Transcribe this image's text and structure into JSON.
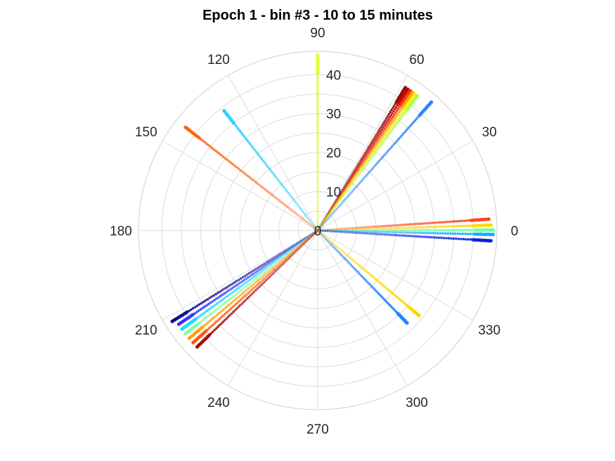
{
  "chart_data": {
    "type": "scatter",
    "subtype": "polar",
    "title": "Epoch 1 - bin #3 - 10 to 15 minutes",
    "angle_unit": "degrees",
    "angle_ticks": [
      0,
      30,
      60,
      90,
      120,
      150,
      180,
      210,
      240,
      270,
      300,
      330
    ],
    "radial_ticks": [
      0,
      10,
      20,
      30,
      40
    ],
    "rlim": [
      0,
      46
    ],
    "grid": true,
    "colormap": "jet",
    "series": [
      {
        "theta": 90,
        "r_max": 45,
        "color": "#d8ff2a"
      },
      {
        "theta": 128,
        "r_max": 39,
        "color": "#22d0ff"
      },
      {
        "theta": 142,
        "r_max": 43,
        "color": "#ff5a0a"
      },
      {
        "theta": 58.5,
        "r_max": 43,
        "color": "#900000"
      },
      {
        "theta": 57.5,
        "r_max": 43,
        "color": "#c00000"
      },
      {
        "theta": 56.5,
        "r_max": 43,
        "color": "#ff2a00"
      },
      {
        "theta": 55.5,
        "r_max": 43,
        "color": "#ffa000"
      },
      {
        "theta": 54.5,
        "r_max": 43,
        "color": "#ffee10"
      },
      {
        "theta": 53.5,
        "r_max": 43,
        "color": "#a8ff50"
      },
      {
        "theta": 48.5,
        "r_max": 44,
        "color": "#1e7cff"
      },
      {
        "theta": 3.8,
        "r_max": 44,
        "color": "#ff3a14"
      },
      {
        "theta": 1.8,
        "r_max": 44.5,
        "color": "#ffd500"
      },
      {
        "theta": 0.2,
        "r_max": 45,
        "color": "#68ffa0"
      },
      {
        "theta": -1.3,
        "r_max": 45,
        "color": "#00aaff"
      },
      {
        "theta": -3.4,
        "r_max": 44.5,
        "color": "#0010e0"
      },
      {
        "theta": -46,
        "r_max": 33,
        "color": "#1e82ff"
      },
      {
        "theta": -40,
        "r_max": 34,
        "color": "#ffd700"
      },
      {
        "theta": 212,
        "r_max": 44,
        "color": "#000090"
      },
      {
        "theta": 214,
        "r_max": 43,
        "color": "#2a2aff"
      },
      {
        "theta": 216,
        "r_max": 43,
        "color": "#10d8ff"
      },
      {
        "theta": 218,
        "r_max": 43,
        "color": "#80ffa0"
      },
      {
        "theta": 220,
        "r_max": 43,
        "color": "#ffa000"
      },
      {
        "theta": 222,
        "r_max": 43,
        "color": "#ff5000"
      },
      {
        "theta": 224,
        "r_max": 43,
        "color": "#a00000"
      }
    ]
  }
}
